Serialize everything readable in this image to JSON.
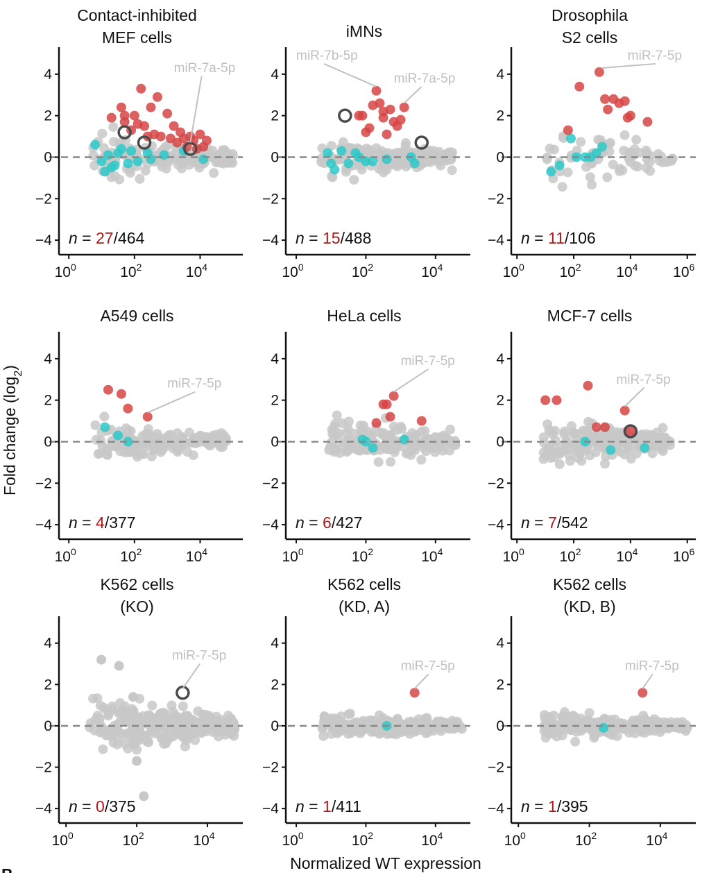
{
  "figure": {
    "ylabel": "Fold change (log",
    "ylabel_sub": "2",
    "ylabel_close": ")",
    "xlabel": "Normalized WT expression",
    "panel_letter": "B"
  },
  "colors": {
    "background_point": "#c8c8c8",
    "up": "#d64545",
    "down": "#2ec8c8",
    "highlight_ring": "#4a4a4a",
    "annotation": "#c0c0c0",
    "count_red": "#b01818",
    "zero_line": "#888888"
  },
  "chart_data": [
    {
      "type": "scatter",
      "title": [
        "Contact-inhibited",
        "MEF cells"
      ],
      "xlim_log10": [
        -0.3,
        5.3
      ],
      "ylim": [
        -4.7,
        5.3
      ],
      "xticks": [
        {
          "base": "10",
          "exp": "0",
          "v": 0
        },
        {
          "base": "10",
          "exp": "2",
          "v": 2
        },
        {
          "base": "10",
          "exp": "4",
          "v": 4
        }
      ],
      "yticks": [
        -4,
        -2,
        0,
        2,
        4
      ],
      "n_label": {
        "prefix": "n = ",
        "count": "27",
        "total": "/464"
      },
      "cloud": {
        "x_range": [
          0.7,
          5.0
        ],
        "spread": 0.35,
        "count": 150
      },
      "up": [
        [
          1.3,
          1.9
        ],
        [
          1.6,
          2.4
        ],
        [
          1.7,
          2.0
        ],
        [
          1.7,
          1.7
        ],
        [
          2.0,
          2.0
        ],
        [
          2.1,
          1.6
        ],
        [
          2.2,
          3.3
        ],
        [
          2.5,
          2.4
        ],
        [
          2.7,
          2.9
        ],
        [
          2.6,
          1.1
        ],
        [
          3.0,
          2.1
        ],
        [
          3.2,
          1.5
        ],
        [
          3.4,
          1.2
        ],
        [
          3.5,
          0.9
        ],
        [
          3.7,
          1.0
        ],
        [
          3.8,
          0.8
        ],
        [
          4.0,
          1.1
        ],
        [
          4.2,
          0.8
        ],
        [
          2.8,
          1.0
        ],
        [
          3.1,
          0.9
        ],
        [
          1.9,
          1.3
        ],
        [
          2.3,
          1.5
        ],
        [
          2.4,
          1.0
        ],
        [
          3.6,
          0.5
        ],
        [
          3.9,
          0.4
        ],
        [
          4.1,
          0.5
        ],
        [
          3.3,
          0.7
        ]
      ],
      "down": [
        [
          0.8,
          0.6
        ],
        [
          1.0,
          -0.2
        ],
        [
          1.1,
          -0.7
        ],
        [
          1.2,
          0.1
        ],
        [
          1.4,
          -0.4
        ],
        [
          1.5,
          0.2
        ],
        [
          1.8,
          -0.3
        ],
        [
          1.9,
          0.3
        ],
        [
          2.1,
          -0.2
        ],
        [
          2.4,
          0.2
        ],
        [
          2.5,
          -0.1
        ],
        [
          2.9,
          0.1
        ],
        [
          3.5,
          0.3
        ],
        [
          4.1,
          -0.1
        ],
        [
          1.3,
          -0.5
        ],
        [
          1.6,
          0.4
        ]
      ],
      "highlight": [
        [
          1.7,
          1.2
        ],
        [
          2.3,
          0.7
        ],
        [
          3.7,
          0.4
        ]
      ],
      "labels": [
        {
          "text": "miR-7a-5p",
          "tx": 3.2,
          "ty": 4.1,
          "px": 3.7,
          "py": 0.5
        }
      ]
    },
    {
      "type": "scatter",
      "title": [
        "",
        "iMNs"
      ],
      "xlim_log10": [
        -0.3,
        5.0
      ],
      "ylim": [
        -4.7,
        5.3
      ],
      "xticks": [
        {
          "base": "10",
          "exp": "0",
          "v": 0
        },
        {
          "base": "10",
          "exp": "2",
          "v": 2
        },
        {
          "base": "10",
          "exp": "4",
          "v": 4
        }
      ],
      "yticks": [
        -4,
        -2,
        0,
        2,
        4
      ],
      "n_label": {
        "prefix": "n = ",
        "count": "15",
        "total": "/488"
      },
      "cloud": {
        "x_range": [
          0.7,
          4.5
        ],
        "spread": 0.35,
        "count": 170
      },
      "up": [
        [
          1.8,
          2.0
        ],
        [
          1.9,
          2.0
        ],
        [
          2.0,
          1.2
        ],
        [
          2.2,
          2.5
        ],
        [
          2.3,
          3.2
        ],
        [
          2.4,
          2.6
        ],
        [
          2.5,
          1.9
        ],
        [
          2.6,
          1.1
        ],
        [
          2.7,
          2.3
        ],
        [
          2.8,
          1.7
        ],
        [
          2.9,
          1.5
        ],
        [
          3.0,
          1.8
        ],
        [
          3.1,
          2.4
        ],
        [
          2.1,
          1.4
        ],
        [
          2.5,
          2.2
        ]
      ],
      "down": [
        [
          0.9,
          0.2
        ],
        [
          1.0,
          -0.3
        ],
        [
          1.1,
          -0.6
        ],
        [
          1.3,
          0.3
        ],
        [
          1.5,
          -0.3
        ],
        [
          1.7,
          0.2
        ],
        [
          2.0,
          -0.2
        ],
        [
          2.2,
          -0.2
        ],
        [
          2.6,
          -0.1
        ],
        [
          3.3,
          0.0
        ],
        [
          3.4,
          -0.3
        ],
        [
          1.8,
          0.0
        ]
      ],
      "highlight": [
        [
          1.4,
          2.0
        ],
        [
          3.6,
          0.7
        ]
      ],
      "labels": [
        {
          "text": "miR-7b-5p",
          "tx": 0.0,
          "ty": 4.7,
          "px": 2.3,
          "py": 3.2
        },
        {
          "text": "miR-7a-5p",
          "tx": 2.8,
          "ty": 3.6,
          "px": 3.1,
          "py": 2.4
        }
      ]
    },
    {
      "type": "scatter",
      "title": [
        "Drosophila",
        "S2 cells"
      ],
      "xlim_log10": [
        -0.2,
        6.3
      ],
      "ylim": [
        -4.7,
        5.3
      ],
      "xticks": [
        {
          "base": "10",
          "exp": "0",
          "v": 0
        },
        {
          "base": "10",
          "exp": "2",
          "v": 2
        },
        {
          "base": "10",
          "exp": "4",
          "v": 4
        },
        {
          "base": "10",
          "exp": "6",
          "v": 6
        }
      ],
      "yticks": [
        -4,
        -2,
        0,
        2,
        4
      ],
      "n_label": {
        "prefix": "n = ",
        "count": "11",
        "total": "/106"
      },
      "cloud": {
        "x_range": [
          1.0,
          5.5
        ],
        "spread": 0.6,
        "count": 70
      },
      "up": [
        [
          1.8,
          1.3
        ],
        [
          2.2,
          3.4
        ],
        [
          2.9,
          4.1
        ],
        [
          3.1,
          2.8
        ],
        [
          3.2,
          2.3
        ],
        [
          3.4,
          2.8
        ],
        [
          3.6,
          2.6
        ],
        [
          3.8,
          2.7
        ],
        [
          3.9,
          1.9
        ],
        [
          4.0,
          2.0
        ],
        [
          4.6,
          1.7
        ]
      ],
      "down": [
        [
          1.2,
          -0.7
        ],
        [
          1.9,
          0.9
        ],
        [
          2.1,
          0.0
        ],
        [
          2.4,
          0.0
        ],
        [
          2.6,
          0.0
        ],
        [
          2.8,
          0.2
        ],
        [
          3.0,
          0.5
        ],
        [
          1.5,
          -0.4
        ]
      ],
      "highlight": [],
      "labels": [
        {
          "text": "miR-7-5p",
          "tx": 3.9,
          "ty": 4.7,
          "px": 3.0,
          "py": 4.1
        }
      ]
    },
    {
      "type": "scatter",
      "title": [
        "",
        "A549 cells"
      ],
      "xlim_log10": [
        -0.3,
        5.3
      ],
      "ylim": [
        -4.7,
        5.3
      ],
      "xticks": [
        {
          "base": "10",
          "exp": "0",
          "v": 0
        },
        {
          "base": "10",
          "exp": "2",
          "v": 2
        },
        {
          "base": "10",
          "exp": "4",
          "v": 4
        }
      ],
      "yticks": [
        -4,
        -2,
        0,
        2,
        4
      ],
      "n_label": {
        "prefix": "n = ",
        "count": "4",
        "total": "/377"
      },
      "cloud": {
        "x_range": [
          0.8,
          4.8
        ],
        "spread": 0.35,
        "count": 160
      },
      "up": [
        [
          1.2,
          2.5
        ],
        [
          1.6,
          2.3
        ],
        [
          1.8,
          1.6
        ],
        [
          2.4,
          1.2
        ]
      ],
      "down": [
        [
          1.1,
          0.7
        ],
        [
          1.5,
          0.3
        ],
        [
          1.8,
          0.0
        ]
      ],
      "highlight": [],
      "labels": [
        {
          "text": "miR-7-5p",
          "tx": 3.0,
          "ty": 2.6,
          "px": 2.4,
          "py": 1.2
        }
      ]
    },
    {
      "type": "scatter",
      "title": [
        "",
        "HeLa cells"
      ],
      "xlim_log10": [
        -0.3,
        5.0
      ],
      "ylim": [
        -4.7,
        5.3
      ],
      "xticks": [
        {
          "base": "10",
          "exp": "0",
          "v": 0
        },
        {
          "base": "10",
          "exp": "2",
          "v": 2
        },
        {
          "base": "10",
          "exp": "4",
          "v": 4
        }
      ],
      "yticks": [
        -4,
        -2,
        0,
        2,
        4
      ],
      "n_label": {
        "prefix": "n = ",
        "count": "6",
        "total": "/427"
      },
      "cloud": {
        "x_range": [
          0.9,
          4.6
        ],
        "spread": 0.35,
        "count": 170
      },
      "up": [
        [
          2.3,
          0.9
        ],
        [
          2.5,
          1.8
        ],
        [
          2.6,
          1.8
        ],
        [
          2.7,
          1.2
        ],
        [
          2.8,
          2.2
        ],
        [
          3.6,
          1.0
        ]
      ],
      "down": [
        [
          1.9,
          0.1
        ],
        [
          2.0,
          0.0
        ],
        [
          2.2,
          -0.3
        ],
        [
          3.1,
          0.1
        ]
      ],
      "highlight": [],
      "labels": [
        {
          "text": "miR-7-5p",
          "tx": 3.0,
          "ty": 3.7,
          "px": 2.8,
          "py": 2.2
        }
      ]
    },
    {
      "type": "scatter",
      "title": [
        "",
        "MCF-7 cells"
      ],
      "xlim_log10": [
        -0.2,
        6.3
      ],
      "ylim": [
        -4.7,
        5.3
      ],
      "xticks": [
        {
          "base": "10",
          "exp": "0",
          "v": 0
        },
        {
          "base": "10",
          "exp": "2",
          "v": 2
        },
        {
          "base": "10",
          "exp": "4",
          "v": 4
        },
        {
          "base": "10",
          "exp": "6",
          "v": 6
        }
      ],
      "yticks": [
        -4,
        -2,
        0,
        2,
        4
      ],
      "n_label": {
        "prefix": "n = ",
        "count": "7",
        "total": "/542"
      },
      "cloud": {
        "x_range": [
          0.9,
          5.4
        ],
        "spread": 0.38,
        "count": 190
      },
      "up": [
        [
          1.0,
          2.0
        ],
        [
          1.4,
          2.0
        ],
        [
          2.5,
          2.7
        ],
        [
          2.8,
          0.7
        ],
        [
          3.1,
          0.7
        ],
        [
          3.8,
          1.5
        ],
        [
          4.0,
          0.5
        ]
      ],
      "down": [
        [
          2.4,
          0.0
        ],
        [
          3.3,
          -0.4
        ],
        [
          4.5,
          -0.3
        ]
      ],
      "highlight": [
        [
          4.0,
          0.5
        ]
      ],
      "labels": [
        {
          "text": "miR-7-5p",
          "tx": 3.5,
          "ty": 2.8,
          "px": 3.8,
          "py": 1.5
        }
      ]
    },
    {
      "type": "scatter",
      "title": [
        "K562 cells",
        "(KO)"
      ],
      "xlim_log10": [
        -0.2,
        5.0
      ],
      "ylim": [
        -4.7,
        5.3
      ],
      "xticks": [
        {
          "base": "10",
          "exp": "0",
          "v": 0
        },
        {
          "base": "10",
          "exp": "2",
          "v": 2
        },
        {
          "base": "10",
          "exp": "4",
          "v": 4
        }
      ],
      "yticks": [
        -4,
        -2,
        0,
        2,
        4
      ],
      "n_label": {
        "prefix": "n = ",
        "count": "0",
        "total": "/375"
      },
      "cloud": {
        "x_range": [
          0.6,
          4.8
        ],
        "spread": 0.5,
        "count": 260
      },
      "up": [],
      "down": [],
      "highlight": [
        [
          3.3,
          1.6
        ]
      ],
      "extra_gray": [
        [
          1.0,
          3.2
        ],
        [
          1.5,
          2.9
        ],
        [
          2.0,
          -1.7
        ],
        [
          2.2,
          -3.4
        ],
        [
          1.9,
          1.4
        ]
      ],
      "labels": [
        {
          "text": "miR-7-5p",
          "tx": 3.0,
          "ty": 3.2,
          "px": 3.3,
          "py": 1.6
        }
      ]
    },
    {
      "type": "scatter",
      "title": [
        "K562 cells",
        "(KD, A)"
      ],
      "xlim_log10": [
        -0.3,
        5.0
      ],
      "ylim": [
        -4.7,
        5.3
      ],
      "xticks": [
        {
          "base": "10",
          "exp": "0",
          "v": 0
        },
        {
          "base": "10",
          "exp": "2",
          "v": 2
        },
        {
          "base": "10",
          "exp": "4",
          "v": 4
        }
      ],
      "yticks": [
        -4,
        -2,
        0,
        2,
        4
      ],
      "n_label": {
        "prefix": "n = ",
        "count": "1",
        "total": "/411"
      },
      "cloud": {
        "x_range": [
          0.7,
          4.8
        ],
        "spread": 0.22,
        "count": 240
      },
      "up": [
        [
          3.4,
          1.6
        ]
      ],
      "down": [
        [
          2.6,
          0.0
        ]
      ],
      "highlight": [],
      "labels": [
        {
          "text": "miR-7-5p",
          "tx": 3.0,
          "ty": 2.7,
          "px": 3.4,
          "py": 1.6
        }
      ]
    },
    {
      "type": "scatter",
      "title": [
        "K562 cells",
        "(KD, B)"
      ],
      "xlim_log10": [
        -0.2,
        5.0
      ],
      "ylim": [
        -4.7,
        5.3
      ],
      "xticks": [
        {
          "base": "10",
          "exp": "0",
          "v": 0
        },
        {
          "base": "10",
          "exp": "2",
          "v": 2
        },
        {
          "base": "10",
          "exp": "4",
          "v": 4
        }
      ],
      "yticks": [
        -4,
        -2,
        0,
        2,
        4
      ],
      "n_label": {
        "prefix": "n = ",
        "count": "1",
        "total": "/395"
      },
      "cloud": {
        "x_range": [
          0.7,
          4.8
        ],
        "spread": 0.22,
        "count": 240
      },
      "up": [
        [
          3.5,
          1.6
        ]
      ],
      "down": [
        [
          2.4,
          -0.1
        ]
      ],
      "highlight": [],
      "labels": [
        {
          "text": "miR-7-5p",
          "tx": 3.0,
          "ty": 2.7,
          "px": 3.5,
          "py": 1.6
        }
      ]
    }
  ]
}
